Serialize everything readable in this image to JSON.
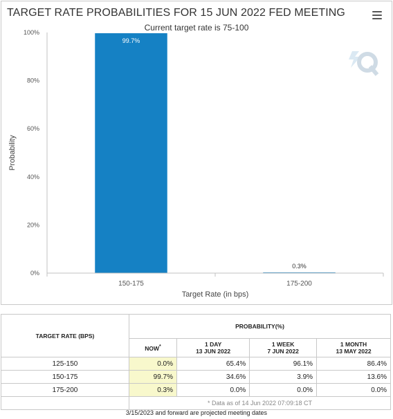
{
  "colors": {
    "bar": "#1581c4",
    "grid": "#e2e2e2",
    "now_highlight": "#f8f8cc"
  },
  "menu_icon": "hamburger-menu-icon",
  "chart_data": {
    "type": "bar",
    "title": "TARGET RATE PROBABILITIES FOR 15 JUN 2022 FED MEETING",
    "subtitle": "Current target rate is 75-100",
    "categories": [
      "150-175",
      "175-200"
    ],
    "values": [
      99.7,
      0.3
    ],
    "data_labels": [
      "99.7%",
      "0.3%"
    ],
    "xlabel": "Target Rate (in bps)",
    "ylabel": "Probability",
    "ylim": [
      0,
      100
    ],
    "yticks": [
      0,
      20,
      40,
      60,
      80,
      100
    ],
    "ytick_labels": [
      "0%",
      "20%",
      "40%",
      "60%",
      "80%",
      "100%"
    ],
    "grid": false
  },
  "table": {
    "rate_header": "TARGET RATE (BPS)",
    "prob_header": "PROBABILITY(%)",
    "columns": [
      {
        "line1": "NOW",
        "line2": "",
        "marker": "*"
      },
      {
        "line1": "1 DAY",
        "line2": "13 JUN 2022",
        "marker": ""
      },
      {
        "line1": "1 WEEK",
        "line2": "7 JUN 2022",
        "marker": ""
      },
      {
        "line1": "1 MONTH",
        "line2": "13 MAY 2022",
        "marker": ""
      }
    ],
    "rows": [
      {
        "rate": "125-150",
        "values": [
          "0.0%",
          "65.4%",
          "96.1%",
          "86.4%"
        ]
      },
      {
        "rate": "150-175",
        "values": [
          "99.7%",
          "34.6%",
          "3.9%",
          "13.6%"
        ]
      },
      {
        "rate": "175-200",
        "values": [
          "0.3%",
          "0.0%",
          "0.0%",
          "0.0%"
        ]
      }
    ],
    "data_note": "* Data as of 14 Jun 2022 07:09:18 CT"
  },
  "footer_note": "3/15/2023 and forward are projected meeting dates"
}
